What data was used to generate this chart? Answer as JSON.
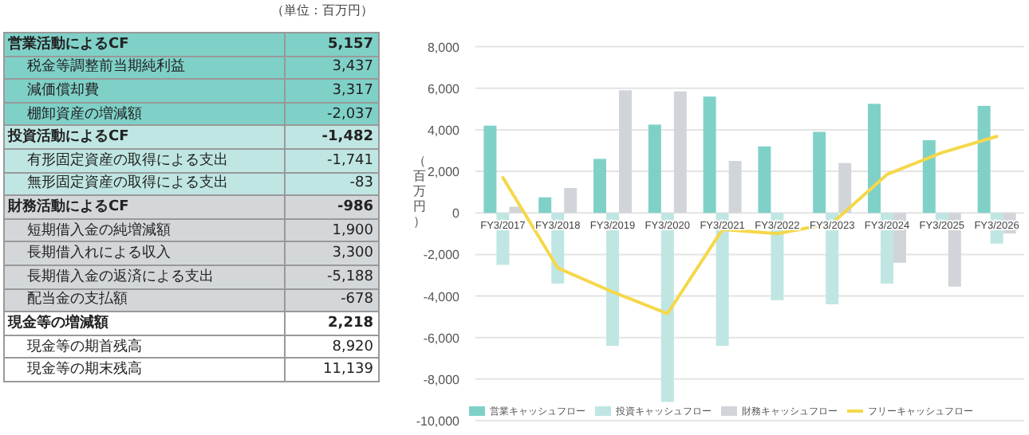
{
  "chart_data": [
    {
      "type": "other",
      "title": "（単位：百万円）",
      "categories": [
        "**営業活動によるCF**",
        "税金等調整前当期純利益",
        "減価償却費",
        "棚卸資産の増減額",
        "**投資活動によるCF**",
        "有形固定資産の取得による支出",
        "無形固定資産の取得による支出",
        "**財務活動によるCF**",
        "短期借入金の純増減額",
        "長期借入れによる収入",
        "長期借入金の返済による支出",
        "配当金の支払額",
        "**現金等の増減額**",
        "現金等の期首残高",
        "現金等の期末残高"
      ],
      "value_labels": [
        "**5,157**",
        "3,437",
        "3,317",
        "-2,037",
        "**-1,482**",
        "-1,741",
        "-83",
        "**-986**",
        "1,900",
        "3,300",
        "-5,188",
        "-678",
        "**2,218**",
        "8,920",
        "11,139"
      ],
      "colors": [
        "#7fd1c8",
        "#7fd1c8",
        "#7fd1c8",
        "#7fd1c8",
        "#bfe6e2",
        "#bfe6e2",
        "#bfe6e2",
        "#d3d7da",
        "#d3d7da",
        "#d3d7da",
        "#d3d7da",
        "#d3d7da",
        "#ffffff",
        "#ffffff",
        "#ffffff"
      ]
    },
    {
      "type": "bar",
      "ylabel": "（百万円）",
      "categories": [
        "FY3/2017",
        "FY3/2018",
        "FY3/2019",
        "FY3/2020",
        "FY3/2021",
        "FY3/2022",
        "FY3/2023",
        "FY3/2024",
        "FY3/2025",
        "FY3/2026"
      ],
      "series": [
        {
          "name": "営業キャッシュフロー",
          "color": "#7fd1c8",
          "values": [
            4200,
            750,
            2600,
            4250,
            5600,
            3200,
            3900,
            5250,
            3500,
            5150
          ]
        },
        {
          "name": "投資キャッシュフロー",
          "color": "#bfe6e2",
          "values": [
            -2500,
            -3400,
            -6400,
            -9100,
            -6400,
            -4200,
            -4400,
            -3400,
            -500,
            -1480
          ]
        },
        {
          "name": "財務キャッシュフロー",
          "color": "#d1d5d9",
          "values": [
            300,
            1200,
            5900,
            5850,
            2500,
            null,
            2400,
            -2400,
            -3550,
            -990
          ]
        },
        {
          "name": "フリーキャッシュフロー",
          "color": "#f5d84a",
          "type": "line",
          "values": [
            1700,
            -2650,
            -3800,
            -4850,
            -800,
            -1000,
            -500,
            1850,
            2900,
            3680
          ]
        }
      ],
      "ylim": [
        -10000,
        8000
      ],
      "yticks": [
        {
          "value": -10000,
          "label": "-10,000"
        },
        {
          "value": -8000,
          "label": "-8,000"
        },
        {
          "value": -6000,
          "label": "-6,000"
        },
        {
          "value": -4000,
          "label": "-4,000"
        },
        {
          "value": -2000,
          "label": "-2,000"
        },
        0,
        {
          "value": 2000,
          "label": "2,000"
        },
        {
          "value": 4000,
          "label": "4,000"
        },
        {
          "value": 6000,
          "label": "6,000"
        },
        {
          "value": 8000,
          "label": "8,000"
        }
      ],
      "grid": "y",
      "legend": "bottom",
      "marker": "none"
    }
  ]
}
